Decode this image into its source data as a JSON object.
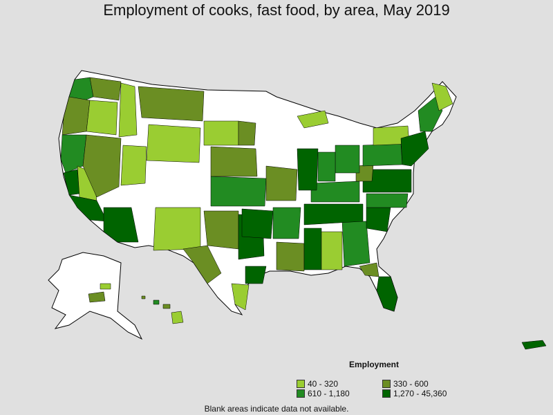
{
  "title": "Employment of cooks, fast food, by area, May 2019",
  "legend": {
    "title": "Employment",
    "items": [
      {
        "label": "40 - 320",
        "color": "#9acd32"
      },
      {
        "label": "330 - 600",
        "color": "#6b8e23"
      },
      {
        "label": "610 - 1,180",
        "color": "#228b22"
      },
      {
        "label": "1,270 - 45,360",
        "color": "#006400"
      }
    ]
  },
  "footnote": "Blank areas indicate data not available.",
  "colors": {
    "background": "#e0e0e0",
    "no_data": "#ffffff",
    "border": "#000000"
  }
}
